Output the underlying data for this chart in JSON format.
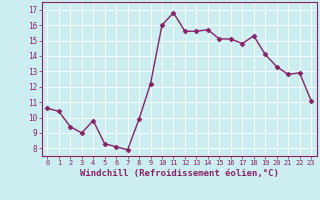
{
  "x": [
    0,
    1,
    2,
    3,
    4,
    5,
    6,
    7,
    8,
    9,
    10,
    11,
    12,
    13,
    14,
    15,
    16,
    17,
    18,
    19,
    20,
    21,
    22,
    23
  ],
  "y": [
    10.6,
    10.4,
    9.4,
    9.0,
    9.8,
    8.3,
    8.1,
    7.9,
    9.9,
    12.2,
    16.0,
    16.8,
    15.6,
    15.6,
    15.7,
    15.1,
    15.1,
    14.8,
    15.3,
    14.1,
    13.3,
    12.8,
    12.9,
    11.1
  ],
  "line_color": "#882266",
  "marker": "D",
  "marker_size": 2.5,
  "line_width": 1.0,
  "xlabel": "Windchill (Refroidissement éolien,°C)",
  "xlabel_fontsize": 6.5,
  "xtick_labels": [
    "0",
    "1",
    "2",
    "3",
    "4",
    "5",
    "6",
    "7",
    "8",
    "9",
    "10",
    "11",
    "12",
    "13",
    "14",
    "15",
    "16",
    "17",
    "18",
    "19",
    "20",
    "21",
    "22",
    "23"
  ],
  "ytick_values": [
    8,
    9,
    10,
    11,
    12,
    13,
    14,
    15,
    16,
    17
  ],
  "ylim": [
    7.5,
    17.5
  ],
  "xlim": [
    -0.5,
    23.5
  ],
  "bg_color": "#cceef0",
  "grid_color": "#ffffff",
  "tick_color": "#882266",
  "label_color": "#882266"
}
